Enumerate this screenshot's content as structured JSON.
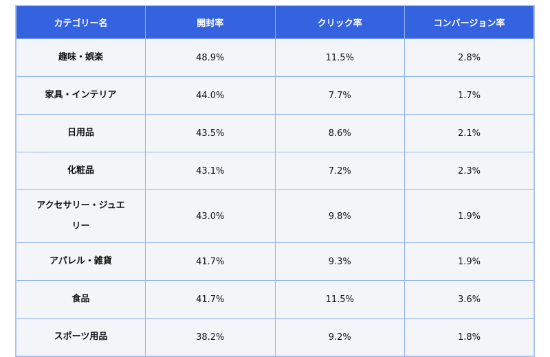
{
  "headers": [
    "カテゴリー名",
    "開封率",
    "クリック率",
    "コンバージョン率"
  ],
  "rows": [
    [
      "趣味・娯楽",
      "48.9%",
      "11.5%",
      "2.8%"
    ],
    [
      "家具・インテリア",
      "44.0%",
      "7.7%",
      "1.7%"
    ],
    [
      "日用品",
      "43.5%",
      "8.6%",
      "2.1%"
    ],
    [
      "化粧品",
      "43.1%",
      "7.2%",
      "2.3%"
    ],
    [
      "アクセサリー・ジュエリー",
      "43.0%",
      "9.8%",
      "1.9%"
    ],
    [
      "アパレル・雑貨",
      "41.7%",
      "9.3%",
      "1.9%"
    ],
    [
      "食品",
      "41.7%",
      "11.5%",
      "3.6%"
    ],
    [
      "スポーツ用品",
      "38.2%",
      "9.2%",
      "1.8%"
    ]
  ]
}
